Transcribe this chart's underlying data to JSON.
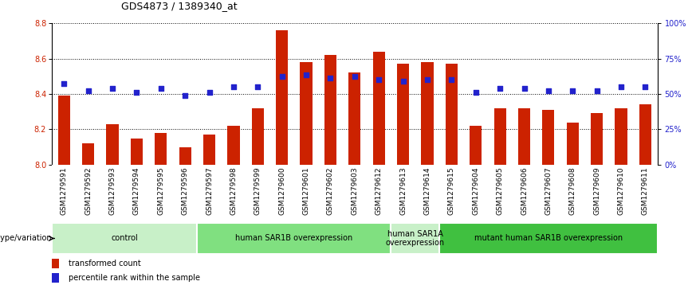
{
  "title": "GDS4873 / 1389340_at",
  "samples": [
    "GSM1279591",
    "GSM1279592",
    "GSM1279593",
    "GSM1279594",
    "GSM1279595",
    "GSM1279596",
    "GSM1279597",
    "GSM1279598",
    "GSM1279599",
    "GSM1279600",
    "GSM1279601",
    "GSM1279602",
    "GSM1279603",
    "GSM1279612",
    "GSM1279613",
    "GSM1279614",
    "GSM1279615",
    "GSM1279604",
    "GSM1279605",
    "GSM1279606",
    "GSM1279607",
    "GSM1279608",
    "GSM1279609",
    "GSM1279610",
    "GSM1279611"
  ],
  "bar_values": [
    8.39,
    8.12,
    8.23,
    8.15,
    8.18,
    8.1,
    8.17,
    8.22,
    8.32,
    8.76,
    8.58,
    8.62,
    8.52,
    8.64,
    8.57,
    8.58,
    8.57,
    8.22,
    8.32,
    8.32,
    8.31,
    8.24,
    8.29,
    8.32,
    8.34
  ],
  "dot_values": [
    8.46,
    8.42,
    8.43,
    8.41,
    8.43,
    8.39,
    8.41,
    8.44,
    8.44,
    8.5,
    8.51,
    8.49,
    8.5,
    8.48,
    8.47,
    8.48,
    8.48,
    8.41,
    8.43,
    8.43,
    8.42,
    8.42,
    8.42,
    8.44,
    8.44
  ],
  "group_configs": [
    {
      "label": "control",
      "start": 0,
      "end": 5,
      "color": "#c8f0c8"
    },
    {
      "label": "human SAR1B overexpression",
      "start": 6,
      "end": 13,
      "color": "#80e080"
    },
    {
      "label": "human SAR1A\noverexpression",
      "start": 14,
      "end": 15,
      "color": "#c8f0c8"
    },
    {
      "label": "mutant human SAR1B overexpression",
      "start": 16,
      "end": 24,
      "color": "#40c040"
    }
  ],
  "ylim": [
    8.0,
    8.8
  ],
  "yticks": [
    8.0,
    8.2,
    8.4,
    8.6,
    8.8
  ],
  "pct_ticks": [
    0,
    25,
    50,
    75,
    100
  ],
  "bar_color": "#cc2200",
  "dot_color": "#2222cc",
  "bar_bottom": 8.0,
  "bar_width": 0.5,
  "dot_size": 16,
  "tick_label_fontsize": 6.5,
  "title_fontsize": 9,
  "strip_fontsize": 7,
  "legend_fontsize": 7,
  "grid_color": "black",
  "grid_style": "dotted",
  "grid_lw": 0.7,
  "xtick_bg_color": "#cccccc",
  "strip_border_color": "#ffffff"
}
